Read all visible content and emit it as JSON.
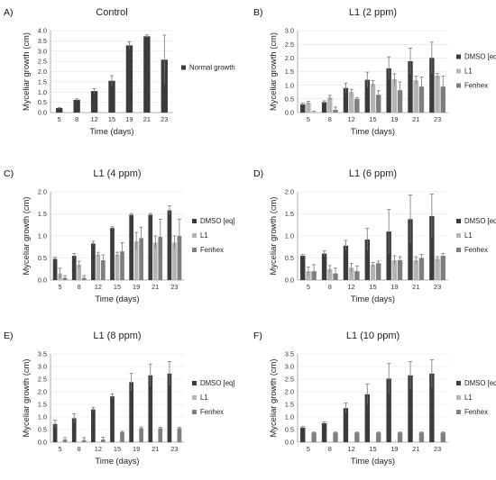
{
  "colors": {
    "DMSO": "#3b3b3b",
    "L1": "#b4b4b4",
    "Fenhex": "#7f7f7f",
    "Normal": "#3b3b3b"
  },
  "chart_data": [
    {
      "letter": "A)",
      "type": "bar",
      "title": "Control",
      "xlabel": "Time (days)",
      "ylabel": "Myceliar growth (cm)",
      "categories": [
        "5",
        "8",
        "12",
        "15",
        "19",
        "21",
        "23"
      ],
      "ylim": [
        0,
        4.0
      ],
      "yticks": [
        "0.0",
        "0.5",
        "1.0",
        "1.5",
        "2.0",
        "2.5",
        "3.0",
        "3.5",
        "4.0"
      ],
      "series": [
        {
          "name": "Normal growth",
          "color_key": "Normal",
          "values": [
            0.22,
            0.62,
            1.05,
            1.55,
            3.28,
            3.72,
            2.58
          ],
          "errors": [
            0.03,
            0.05,
            0.12,
            0.25,
            0.18,
            0.07,
            1.2
          ]
        }
      ],
      "legend": "right"
    },
    {
      "letter": "B)",
      "type": "bar",
      "title": "L1 (2 ppm)",
      "xlabel": "Time (days)",
      "ylabel": "Myceliar growth (cm)",
      "categories": [
        "5",
        "8",
        "12",
        "15",
        "19",
        "21",
        "23"
      ],
      "ylim": [
        0,
        3.0
      ],
      "yticks": [
        "0.0",
        "0.5",
        "1.0",
        "1.5",
        "2.0",
        "2.5",
        "3.0"
      ],
      "series": [
        {
          "name": "DMSO [eq]",
          "color_key": "DMSO",
          "values": [
            0.3,
            0.38,
            0.9,
            1.2,
            1.62,
            1.88,
            2.0
          ],
          "errors": [
            0.05,
            0.05,
            0.18,
            0.28,
            0.42,
            0.48,
            0.58
          ]
        },
        {
          "name": "L1",
          "color_key": "L1",
          "values": [
            0.36,
            0.55,
            0.75,
            1.05,
            1.22,
            1.18,
            1.35
          ],
          "errors": [
            0.05,
            0.08,
            0.1,
            0.12,
            0.2,
            0.15,
            0.08
          ]
        },
        {
          "name": "Fenhex",
          "color_key": "Fenhex",
          "values": [
            0.0,
            0.1,
            0.5,
            0.65,
            0.82,
            0.95,
            0.95
          ],
          "errors": [
            0.05,
            0.1,
            0.05,
            0.15,
            0.3,
            0.35,
            0.38
          ]
        }
      ],
      "legend": "right"
    },
    {
      "letter": "C)",
      "type": "bar",
      "title": "L1 (4 ppm)",
      "xlabel": "Time (days)",
      "ylabel": "Myceliar growth (cm)",
      "categories": [
        "5",
        "8",
        "12",
        "15",
        "19",
        "21",
        "23"
      ],
      "ylim": [
        0,
        2.0
      ],
      "yticks": [
        "0.0",
        "0.5",
        "1.0",
        "1.5",
        "2.0"
      ],
      "series": [
        {
          "name": "DMSO [eq]",
          "color_key": "DMSO",
          "values": [
            0.48,
            0.55,
            0.83,
            1.18,
            1.48,
            1.48,
            1.58
          ],
          "errors": [
            0.04,
            0.05,
            0.05,
            0.03,
            0.03,
            0.03,
            0.1
          ]
        },
        {
          "name": "L1",
          "color_key": "L1",
          "values": [
            0.15,
            0.35,
            0.58,
            0.58,
            0.88,
            0.85,
            0.85
          ],
          "errors": [
            0.12,
            0.08,
            0.05,
            0.05,
            0.2,
            0.15,
            0.15
          ]
        },
        {
          "name": "Fenhex",
          "color_key": "Fenhex",
          "values": [
            0.05,
            0.05,
            0.45,
            0.65,
            0.95,
            0.98,
            1.0
          ],
          "errors": [
            0.05,
            0.05,
            0.12,
            0.2,
            0.25,
            0.4,
            0.38
          ]
        }
      ],
      "legend": "right"
    },
    {
      "letter": "D)",
      "type": "bar",
      "title": "L1 (6 ppm)",
      "xlabel": "Time (days)",
      "ylabel": "Myceliar growth (cm)",
      "categories": [
        "5",
        "8",
        "12",
        "15",
        "19",
        "21",
        "23"
      ],
      "ylim": [
        0,
        2.0
      ],
      "yticks": [
        "0.0",
        "0.5",
        "1.0",
        "1.5",
        "2.0"
      ],
      "series": [
        {
          "name": "DMSO [eq]",
          "color_key": "DMSO",
          "values": [
            0.55,
            0.6,
            0.78,
            0.92,
            1.1,
            1.38,
            1.45
          ],
          "errors": [
            0.03,
            0.06,
            0.12,
            0.25,
            0.5,
            0.55,
            0.5
          ]
        },
        {
          "name": "L1",
          "color_key": "L1",
          "values": [
            0.2,
            0.25,
            0.28,
            0.35,
            0.45,
            0.45,
            0.48
          ],
          "errors": [
            0.1,
            0.08,
            0.1,
            0.05,
            0.1,
            0.08,
            0.05
          ]
        },
        {
          "name": "Fenhex",
          "color_key": "Fenhex",
          "values": [
            0.2,
            0.15,
            0.2,
            0.38,
            0.45,
            0.5,
            0.55
          ],
          "errors": [
            0.15,
            0.12,
            0.12,
            0.05,
            0.08,
            0.08,
            0.05
          ]
        }
      ],
      "legend": "right"
    },
    {
      "letter": "E)",
      "type": "bar",
      "title": "L1 (8 ppm)",
      "xlabel": "Time (days)",
      "ylabel": "Myceliar growth (cm)",
      "categories": [
        "5",
        "8",
        "12",
        "15",
        "19",
        "21",
        "23"
      ],
      "ylim": [
        0,
        3.5
      ],
      "yticks": [
        "0.0",
        "0.5",
        "1.0",
        "1.5",
        "2.0",
        "2.5",
        "3.0",
        "3.5"
      ],
      "series": [
        {
          "name": "DMSO [eq]",
          "color_key": "DMSO",
          "values": [
            0.72,
            0.95,
            1.3,
            1.82,
            2.38,
            2.65,
            2.72
          ],
          "errors": [
            0.15,
            0.18,
            0.08,
            0.1,
            0.35,
            0.45,
            0.48
          ]
        },
        {
          "name": "L1",
          "color_key": "L1",
          "values": [
            0.0,
            0.0,
            0.0,
            0.0,
            0.0,
            0.0,
            0.0
          ],
          "errors": [
            0,
            0,
            0,
            0,
            0,
            0,
            0
          ]
        },
        {
          "name": "Fenhex",
          "color_key": "Fenhex",
          "values": [
            0.1,
            0.08,
            0.1,
            0.4,
            0.55,
            0.55,
            0.55
          ],
          "errors": [
            0.08,
            0.1,
            0.1,
            0.03,
            0.05,
            0.04,
            0.04
          ]
        }
      ],
      "legend": "right"
    },
    {
      "letter": "F)",
      "type": "bar",
      "title": "L1 (10 ppm)",
      "xlabel": "Time (days)",
      "ylabel": "Myceliar growth (cm)",
      "categories": [
        "5",
        "8",
        "12",
        "15",
        "19",
        "21",
        "23"
      ],
      "ylim": [
        0,
        3.5
      ],
      "yticks": [
        "0.0",
        "0.5",
        "1.0",
        "1.5",
        "2.0",
        "2.5",
        "3.0",
        "3.5"
      ],
      "series": [
        {
          "name": "DMSO [eq]",
          "color_key": "DMSO",
          "values": [
            0.58,
            0.75,
            1.35,
            1.9,
            2.52,
            2.65,
            2.72
          ],
          "errors": [
            0.04,
            0.05,
            0.2,
            0.4,
            0.6,
            0.55,
            0.55
          ]
        },
        {
          "name": "L1",
          "color_key": "L1",
          "values": [
            0.0,
            0.0,
            0.0,
            0.0,
            0.0,
            0.0,
            0.0
          ],
          "errors": [
            0,
            0,
            0,
            0,
            0,
            0,
            0
          ]
        },
        {
          "name": "Fenhex",
          "color_key": "Fenhex",
          "values": [
            0.38,
            0.38,
            0.38,
            0.38,
            0.38,
            0.38,
            0.38
          ],
          "errors": [
            0.02,
            0.02,
            0.02,
            0.02,
            0.02,
            0.02,
            0.02
          ]
        }
      ],
      "legend": "right"
    }
  ]
}
